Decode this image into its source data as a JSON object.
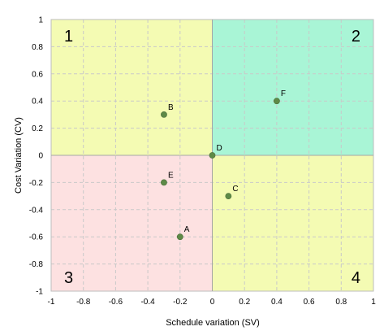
{
  "chart_data": {
    "type": "scatter",
    "xlabel": "Schedule variation (SV)",
    "ylabel": "Cost Variation (CV)",
    "xlim": [
      -1,
      1
    ],
    "ylim": [
      -1,
      1
    ],
    "x_ticks": [
      -1,
      -0.8,
      -0.6,
      -0.4,
      -0.2,
      0,
      0.2,
      0.4,
      0.6,
      0.8,
      1
    ],
    "y_ticks": [
      -1,
      -0.8,
      -0.6,
      -0.4,
      -0.2,
      0,
      0.2,
      0.4,
      0.6,
      0.8,
      1
    ],
    "x_tick_labels": [
      "-1",
      "-0.8",
      "-0.6",
      "-0.4",
      "-0.2",
      "0",
      "0.2",
      "0.4",
      "0.6",
      "0.8",
      "1"
    ],
    "y_tick_labels": [
      "-1",
      "-0.8",
      "-0.6",
      "-0.4",
      "-0.2",
      "0",
      "0.2",
      "0.4",
      "0.6",
      "0.8",
      "1"
    ],
    "grid": true,
    "quadrants": [
      {
        "label": "1",
        "x_range": [
          -1,
          0
        ],
        "y_range": [
          0,
          1
        ],
        "color": "#f4fbb3"
      },
      {
        "label": "2",
        "x_range": [
          0,
          1
        ],
        "y_range": [
          0,
          1
        ],
        "color": "#a9f5d6"
      },
      {
        "label": "3",
        "x_range": [
          -1,
          0
        ],
        "y_range": [
          -1,
          0
        ],
        "color": "#fde1e1"
      },
      {
        "label": "4",
        "x_range": [
          0,
          1
        ],
        "y_range": [
          -1,
          0
        ],
        "color": "#f4fbb3"
      }
    ],
    "points": [
      {
        "label": "A",
        "x": -0.2,
        "y": -0.6
      },
      {
        "label": "B",
        "x": -0.3,
        "y": 0.3
      },
      {
        "label": "C",
        "x": 0.1,
        "y": -0.3
      },
      {
        "label": "D",
        "x": 0.0,
        "y": 0.0
      },
      {
        "label": "E",
        "x": -0.3,
        "y": -0.2
      },
      {
        "label": "F",
        "x": 0.4,
        "y": 0.4
      }
    ],
    "point_color": "#5e8a47"
  }
}
